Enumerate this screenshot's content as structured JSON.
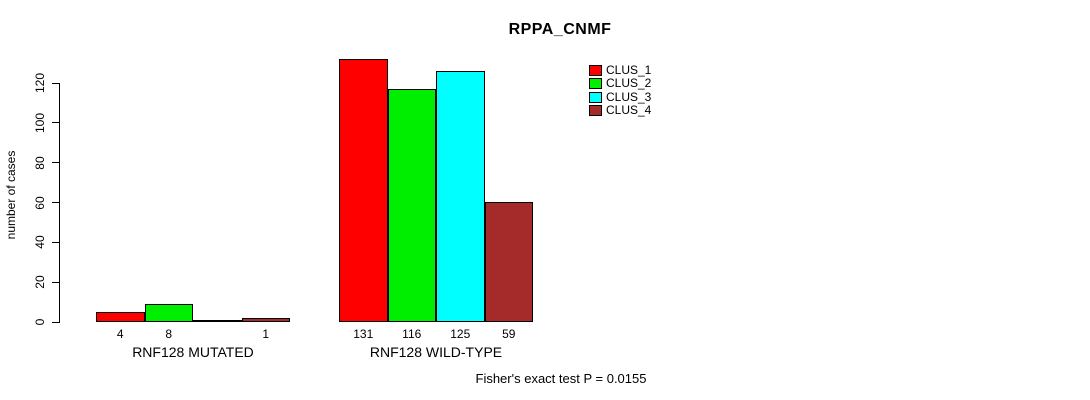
{
  "title": "RPPA_CNMF",
  "ylabel": "number of cases",
  "annotation": "Fisher's exact test P = 0.0155",
  "colors": {
    "background": "#FFFFFF",
    "axis": "#000000",
    "clus_1": "#FF0000",
    "clus_2": "#00EE00",
    "clus_3": "#00FFFF",
    "clus_4": "#A52A2A"
  },
  "legend": {
    "entries": [
      {
        "label": "CLUS_1",
        "color": "#FF0000"
      },
      {
        "label": "CLUS_2",
        "color": "#00EE00"
      },
      {
        "label": "CLUS_3",
        "color": "#00FFFF"
      },
      {
        "label": "CLUS_4",
        "color": "#A52A2A"
      }
    ]
  },
  "chart_data": {
    "type": "bar",
    "title": "RPPA_CNMF",
    "xlabel": "",
    "ylabel": "number of cases",
    "ylim": [
      0,
      131
    ],
    "yticks": [
      0,
      20,
      40,
      60,
      80,
      100,
      120
    ],
    "grid": false,
    "legend_position": "top-right",
    "categories": [
      "RNF128 MUTATED",
      "RNF128 WILD-TYPE"
    ],
    "series": [
      {
        "name": "CLUS_1",
        "color": "#FF0000",
        "values": [
          4,
          131
        ]
      },
      {
        "name": "CLUS_2",
        "color": "#00EE00",
        "values": [
          8,
          116
        ]
      },
      {
        "name": "CLUS_3",
        "color": "#00FFFF",
        "values": [
          0,
          125
        ]
      },
      {
        "name": "CLUS_4",
        "color": "#A52A2A",
        "values": [
          1,
          59
        ]
      }
    ],
    "bar_value_labels": [
      [
        "4",
        "8",
        "",
        "1"
      ],
      [
        "131",
        "116",
        "125",
        "59"
      ]
    ],
    "annotation": "Fisher's exact test P = 0.0155"
  }
}
